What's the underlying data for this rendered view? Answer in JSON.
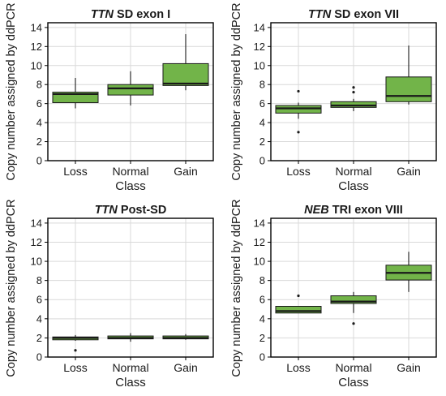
{
  "chart_data": [
    {
      "type": "box",
      "title_italic": "TTN",
      "title_rest": " SD exon I",
      "xlabel": "Class",
      "ylabel": "Copy number assigned by ddPCR",
      "ylim": [
        0,
        14.5
      ],
      "yticks": [
        0,
        2,
        4,
        6,
        8,
        10,
        12,
        14
      ],
      "grid": true,
      "categories": [
        "Loss",
        "Normal",
        "Gain"
      ],
      "boxes": [
        {
          "category": "Loss",
          "whisker_low": 5.5,
          "q1": 6.1,
          "median": 7.0,
          "q3": 7.2,
          "whisker_high": 8.7,
          "outliers": []
        },
        {
          "category": "Normal",
          "whisker_low": 5.8,
          "q1": 6.9,
          "median": 7.6,
          "q3": 8.0,
          "whisker_high": 9.4,
          "outliers": []
        },
        {
          "category": "Gain",
          "whisker_low": 7.4,
          "q1": 7.9,
          "median": 8.1,
          "q3": 10.2,
          "whisker_high": 13.3,
          "outliers": []
        }
      ]
    },
    {
      "type": "box",
      "title_italic": "TTN",
      "title_rest": " SD exon VII",
      "xlabel": "Class",
      "ylabel": "Copy number assigned by ddPCR",
      "ylim": [
        0,
        14.5
      ],
      "yticks": [
        0,
        2,
        4,
        6,
        8,
        10,
        12,
        14
      ],
      "grid": true,
      "categories": [
        "Loss",
        "Normal",
        "Gain"
      ],
      "boxes": [
        {
          "category": "Loss",
          "whisker_low": 4.4,
          "q1": 5.0,
          "median": 5.5,
          "q3": 5.8,
          "whisker_high": 6.1,
          "outliers": [
            7.3,
            3.0
          ]
        },
        {
          "category": "Normal",
          "whisker_low": 5.2,
          "q1": 5.6,
          "median": 5.8,
          "q3": 6.2,
          "whisker_high": 6.5,
          "outliers": [
            7.2,
            7.7
          ]
        },
        {
          "category": "Gain",
          "whisker_low": 5.9,
          "q1": 6.2,
          "median": 6.8,
          "q3": 8.8,
          "whisker_high": 12.1,
          "outliers": []
        }
      ]
    },
    {
      "type": "box",
      "title_italic": "TTN",
      "title_rest": " Post-SD",
      "xlabel": "Class",
      "ylabel": "Copy number assigned by ddPCR",
      "ylim": [
        0,
        14.5
      ],
      "yticks": [
        0,
        2,
        4,
        6,
        8,
        10,
        12,
        14
      ],
      "grid": true,
      "categories": [
        "Loss",
        "Normal",
        "Gain"
      ],
      "boxes": [
        {
          "category": "Loss",
          "whisker_low": 1.7,
          "q1": 1.8,
          "median": 2.0,
          "q3": 2.1,
          "whisker_high": 2.3,
          "outliers": [
            0.7
          ]
        },
        {
          "category": "Normal",
          "whisker_low": 1.6,
          "q1": 1.9,
          "median": 2.0,
          "q3": 2.2,
          "whisker_high": 2.5,
          "outliers": []
        },
        {
          "category": "Gain",
          "whisker_low": 1.8,
          "q1": 1.9,
          "median": 2.0,
          "q3": 2.2,
          "whisker_high": 2.4,
          "outliers": []
        }
      ]
    },
    {
      "type": "box",
      "title_italic": "NEB",
      "title_rest": " TRI exon VIII",
      "xlabel": "Class",
      "ylabel": "Copy number assigned by ddPCR",
      "ylim": [
        0,
        14.5
      ],
      "yticks": [
        0,
        2,
        4,
        6,
        8,
        10,
        12,
        14
      ],
      "grid": true,
      "categories": [
        "Loss",
        "Normal",
        "Gain"
      ],
      "boxes": [
        {
          "category": "Loss",
          "whisker_low": 4.6,
          "q1": 4.6,
          "median": 4.8,
          "q3": 5.3,
          "whisker_high": 5.3,
          "outliers": [
            6.4
          ]
        },
        {
          "category": "Normal",
          "whisker_low": 4.6,
          "q1": 5.6,
          "median": 5.8,
          "q3": 6.4,
          "whisker_high": 6.8,
          "outliers": [
            3.5
          ]
        },
        {
          "category": "Gain",
          "whisker_low": 6.8,
          "q1": 8.05,
          "median": 8.8,
          "q3": 9.6,
          "whisker_high": 11.0,
          "outliers": []
        }
      ]
    }
  ],
  "colors": {
    "box_fill": "#72b449",
    "box_stroke": "#1a1a1a",
    "grid": "#d9d9d9",
    "axis": "#000000",
    "text": "#1a1a1a"
  }
}
